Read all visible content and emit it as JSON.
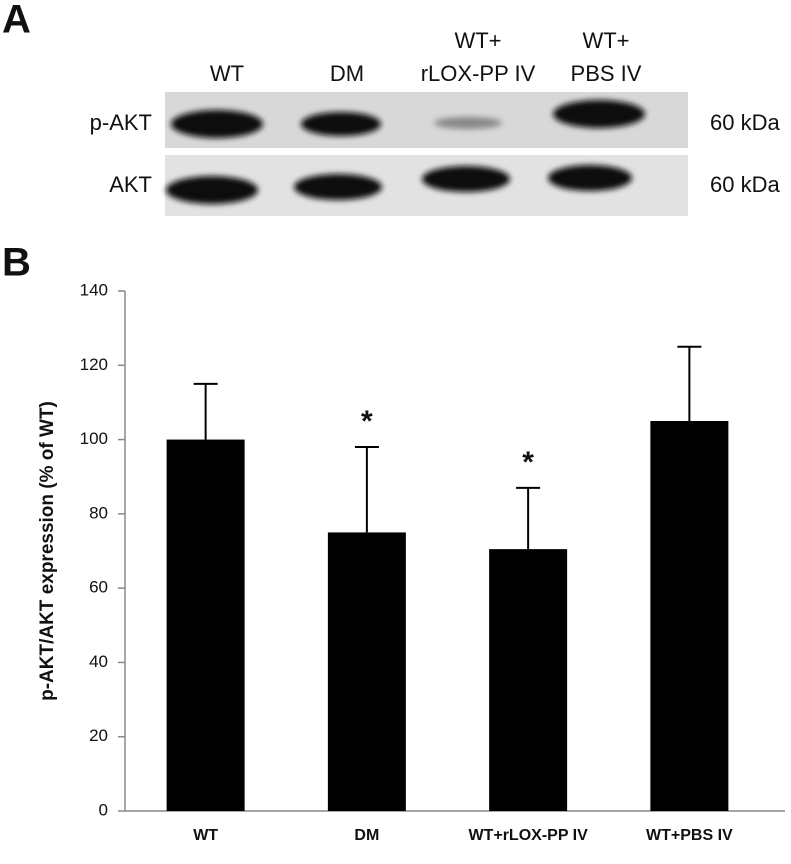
{
  "panel_a": {
    "label": "A",
    "lanes": [
      [
        "WT"
      ],
      [
        "DM"
      ],
      [
        "WT+",
        "rLOX-PP IV"
      ],
      [
        "WT+",
        "PBS IV"
      ]
    ],
    "rows": [
      {
        "name": "p-AKT",
        "size": "60 kDa"
      },
      {
        "name": "AKT",
        "size": "60 kDa"
      }
    ]
  },
  "chart_data": {
    "type": "bar",
    "panel_label": "B",
    "ylabel": "p-AKT/AKT expression  (% of WT)",
    "categories": [
      "WT",
      "DM",
      "WT+rLOX-PP IV",
      "WT+PBS IV"
    ],
    "values": [
      100,
      75,
      70.5,
      105
    ],
    "errors": [
      15,
      23,
      16.5,
      20
    ],
    "annotations": [
      null,
      "*",
      "*",
      null
    ],
    "color": "#000000",
    "ylim": [
      0,
      140
    ],
    "yticks": [
      0,
      20,
      40,
      60,
      80,
      100,
      120,
      140
    ]
  }
}
